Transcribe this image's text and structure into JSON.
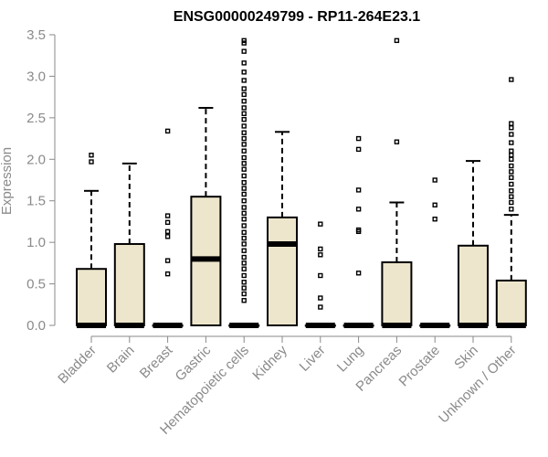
{
  "chart_data": {
    "type": "boxplot",
    "title": "ENSG00000249799 - RP11-264E23.1",
    "ylabel": "Expression",
    "xlabel": "",
    "ylim": [
      0,
      3.5
    ],
    "yticks": [
      "0.0",
      "0.5",
      "1.0",
      "1.5",
      "2.0",
      "2.5",
      "3.0",
      "3.5"
    ],
    "grid": false,
    "box_color": "#EDE6CC",
    "categories": [
      "Bladder",
      "Brain",
      "Breast",
      "Gastric",
      "Hematopoietic cells",
      "Kidney",
      "Liver",
      "Lung",
      "Pancreas",
      "Prostate",
      "Skin",
      "Unknown / Other"
    ],
    "boxes": [
      {
        "q1": 0,
        "median": 0,
        "q3": 0.68,
        "whisker_low": 0,
        "whisker_high": 1.62,
        "outliers": [
          1.97,
          2.05
        ]
      },
      {
        "q1": 0,
        "median": 0,
        "q3": 0.98,
        "whisker_low": 0,
        "whisker_high": 1.95,
        "outliers": []
      },
      {
        "q1": 0,
        "median": 0,
        "q3": 0,
        "whisker_low": 0,
        "whisker_high": 0,
        "outliers": [
          0.62,
          0.78,
          1.07,
          1.13,
          1.24,
          1.32,
          2.34
        ]
      },
      {
        "q1": 0,
        "median": 0.8,
        "q3": 1.55,
        "whisker_low": 0,
        "whisker_high": 2.62,
        "outliers": []
      },
      {
        "q1": 0,
        "median": 0,
        "q3": 0,
        "whisker_low": 0,
        "whisker_high": 0,
        "outliers": [
          0.3,
          0.38,
          0.45,
          0.52,
          0.6,
          0.68,
          0.75,
          0.82,
          0.9,
          0.98,
          1.05,
          1.12,
          1.2,
          1.28,
          1.35,
          1.42,
          1.5,
          1.58,
          1.65,
          1.72,
          1.8,
          1.88,
          1.95,
          2.02,
          2.1,
          2.18,
          2.25,
          2.32,
          2.4,
          2.48,
          2.55,
          2.62,
          2.7,
          2.78,
          2.85,
          2.95,
          3.05,
          3.16,
          3.3,
          3.4,
          3.43
        ]
      },
      {
        "q1": 0,
        "median": 0.98,
        "q3": 1.3,
        "whisker_low": 0,
        "whisker_high": 2.33,
        "outliers": []
      },
      {
        "q1": 0,
        "median": 0,
        "q3": 0,
        "whisker_low": 0,
        "whisker_high": 0,
        "outliers": [
          0.22,
          0.33,
          0.6,
          0.85,
          0.92,
          1.22
        ]
      },
      {
        "q1": 0,
        "median": 0,
        "q3": 0,
        "whisker_low": 0,
        "whisker_high": 0,
        "outliers": [
          0.63,
          1.13,
          1.15,
          1.4,
          1.63,
          2.12,
          2.25
        ]
      },
      {
        "q1": 0,
        "median": 0,
        "q3": 0.76,
        "whisker_low": 0,
        "whisker_high": 1.48,
        "outliers": [
          2.21,
          3.43
        ]
      },
      {
        "q1": 0,
        "median": 0,
        "q3": 0,
        "whisker_low": 0,
        "whisker_high": 0,
        "outliers": [
          1.28,
          1.45,
          1.75
        ]
      },
      {
        "q1": 0,
        "median": 0,
        "q3": 0.96,
        "whisker_low": 0,
        "whisker_high": 1.98,
        "outliers": []
      },
      {
        "q1": 0,
        "median": 0,
        "q3": 0.54,
        "whisker_low": 0,
        "whisker_high": 1.33,
        "outliers": [
          1.4,
          1.48,
          1.55,
          1.62,
          1.7,
          1.78,
          1.85,
          1.92,
          2.0,
          2.05,
          2.1,
          2.2,
          2.3,
          2.38,
          2.43,
          2.96
        ]
      }
    ]
  }
}
